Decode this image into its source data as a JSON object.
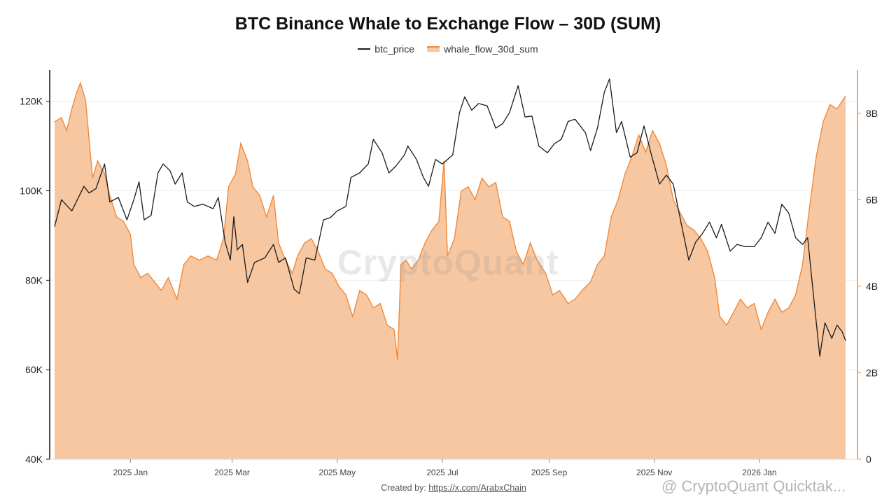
{
  "chart_data": {
    "type": "line",
    "title": "BTC Binance Whale to Exchange Flow – 30D (SUM)",
    "xlabel": "",
    "ylabel_left": "",
    "ylabel_right": "",
    "x_range": [
      "2024-11-18",
      "2026-02-20"
    ],
    "x_ticks": [
      {
        "date": "2025-01-01",
        "label": "2025 Jan"
      },
      {
        "date": "2025-03-01",
        "label": "2025 Mar"
      },
      {
        "date": "2025-05-01",
        "label": "2025 May"
      },
      {
        "date": "2025-07-01",
        "label": "2025 Jul"
      },
      {
        "date": "2025-09-01",
        "label": "2025 Sep"
      },
      {
        "date": "2025-11-01",
        "label": "2025 Nov"
      },
      {
        "date": "2026-01-01",
        "label": "2026 Jan"
      }
    ],
    "y_left": {
      "range": [
        40000,
        127000
      ],
      "ticks": [
        40000,
        60000,
        80000,
        100000,
        120000
      ],
      "tick_labels": [
        "40K",
        "60K",
        "80K",
        "100K",
        "120K"
      ]
    },
    "y_right": {
      "range": [
        0,
        9000000000
      ],
      "ticks": [
        0,
        2000000000,
        4000000000,
        6000000000,
        8000000000
      ],
      "tick_labels": [
        "0",
        "2B",
        "4B",
        "6B",
        "8B"
      ]
    },
    "grid": true,
    "legend_position": "top-center",
    "series": [
      {
        "name": "btc_price",
        "type": "line",
        "axis": "left",
        "color": "#1a1a1a",
        "points": [
          [
            "2024-11-18",
            92000
          ],
          [
            "2024-11-22",
            98000
          ],
          [
            "2024-11-28",
            95500
          ],
          [
            "2024-12-05",
            101000
          ],
          [
            "2024-12-08",
            99500
          ],
          [
            "2024-12-12",
            100500
          ],
          [
            "2024-12-17",
            106000
          ],
          [
            "2024-12-20",
            97500
          ],
          [
            "2024-12-25",
            98500
          ],
          [
            "2024-12-30",
            93500
          ],
          [
            "2025-01-03",
            98000
          ],
          [
            "2025-01-06",
            102000
          ],
          [
            "2025-01-09",
            93500
          ],
          [
            "2025-01-13",
            94500
          ],
          [
            "2025-01-17",
            104000
          ],
          [
            "2025-01-20",
            106000
          ],
          [
            "2025-01-24",
            104500
          ],
          [
            "2025-01-27",
            101500
          ],
          [
            "2025-01-31",
            104000
          ],
          [
            "2025-02-03",
            97500
          ],
          [
            "2025-02-07",
            96500
          ],
          [
            "2025-02-12",
            97000
          ],
          [
            "2025-02-18",
            96000
          ],
          [
            "2025-02-21",
            98500
          ],
          [
            "2025-02-25",
            88500
          ],
          [
            "2025-02-28",
            84500
          ],
          [
            "2025-03-02",
            94200
          ],
          [
            "2025-03-04",
            86800
          ],
          [
            "2025-03-07",
            88000
          ],
          [
            "2025-03-10",
            79500
          ],
          [
            "2025-03-14",
            84000
          ],
          [
            "2025-03-20",
            85000
          ],
          [
            "2025-03-25",
            88000
          ],
          [
            "2025-03-28",
            84000
          ],
          [
            "2025-04-01",
            85000
          ],
          [
            "2025-04-06",
            78000
          ],
          [
            "2025-04-09",
            77000
          ],
          [
            "2025-04-13",
            85000
          ],
          [
            "2025-04-18",
            84500
          ],
          [
            "2025-04-23",
            93500
          ],
          [
            "2025-04-27",
            94000
          ],
          [
            "2025-05-01",
            95500
          ],
          [
            "2025-05-06",
            96500
          ],
          [
            "2025-05-09",
            103000
          ],
          [
            "2025-05-14",
            104000
          ],
          [
            "2025-05-19",
            106000
          ],
          [
            "2025-05-22",
            111500
          ],
          [
            "2025-05-27",
            108500
          ],
          [
            "2025-05-31",
            104000
          ],
          [
            "2025-06-04",
            105500
          ],
          [
            "2025-06-09",
            108000
          ],
          [
            "2025-06-11",
            110000
          ],
          [
            "2025-06-16",
            107000
          ],
          [
            "2025-06-20",
            103000
          ],
          [
            "2025-06-23",
            101000
          ],
          [
            "2025-06-27",
            107000
          ],
          [
            "2025-07-01",
            106000
          ],
          [
            "2025-07-07",
            108000
          ],
          [
            "2025-07-11",
            117500
          ],
          [
            "2025-07-14",
            121000
          ],
          [
            "2025-07-18",
            118000
          ],
          [
            "2025-07-22",
            119500
          ],
          [
            "2025-07-27",
            119000
          ],
          [
            "2025-08-01",
            114000
          ],
          [
            "2025-08-05",
            115000
          ],
          [
            "2025-08-09",
            117500
          ],
          [
            "2025-08-14",
            123500
          ],
          [
            "2025-08-18",
            116500
          ],
          [
            "2025-08-22",
            116700
          ],
          [
            "2025-08-26",
            110000
          ],
          [
            "2025-08-31",
            108500
          ],
          [
            "2025-09-04",
            110500
          ],
          [
            "2025-09-08",
            111500
          ],
          [
            "2025-09-12",
            115500
          ],
          [
            "2025-09-16",
            116000
          ],
          [
            "2025-09-22",
            113000
          ],
          [
            "2025-09-25",
            109000
          ],
          [
            "2025-09-29",
            114000
          ],
          [
            "2025-10-03",
            122000
          ],
          [
            "2025-10-06",
            125000
          ],
          [
            "2025-10-10",
            113000
          ],
          [
            "2025-10-13",
            115500
          ],
          [
            "2025-10-18",
            107500
          ],
          [
            "2025-10-22",
            108500
          ],
          [
            "2025-10-26",
            114500
          ],
          [
            "2025-10-30",
            108500
          ],
          [
            "2025-11-04",
            101500
          ],
          [
            "2025-11-08",
            103500
          ],
          [
            "2025-11-12",
            101500
          ],
          [
            "2025-11-17",
            92000
          ],
          [
            "2025-11-21",
            84500
          ],
          [
            "2025-11-25",
            88500
          ],
          [
            "2025-11-29",
            90500
          ],
          [
            "2025-12-03",
            93000
          ],
          [
            "2025-12-07",
            89500
          ],
          [
            "2025-12-10",
            92500
          ],
          [
            "2025-12-15",
            86500
          ],
          [
            "2025-12-19",
            88000
          ],
          [
            "2025-12-24",
            87500
          ],
          [
            "2025-12-29",
            87500
          ],
          [
            "2026-01-02",
            89500
          ],
          [
            "2026-01-06",
            93000
          ],
          [
            "2026-01-10",
            90500
          ],
          [
            "2026-01-14",
            97000
          ],
          [
            "2026-01-18",
            95000
          ],
          [
            "2026-01-22",
            89500
          ],
          [
            "2026-01-26",
            88000
          ],
          [
            "2026-01-29",
            89500
          ],
          [
            "2026-02-01",
            78000
          ],
          [
            "2026-02-05",
            63000
          ],
          [
            "2026-02-08",
            70500
          ],
          [
            "2026-02-12",
            67000
          ],
          [
            "2026-02-15",
            70000
          ],
          [
            "2026-02-18",
            68500
          ],
          [
            "2026-02-20",
            66500
          ]
        ]
      },
      {
        "name": "whale_flow_30d_sum",
        "type": "area",
        "axis": "right",
        "color": "#ef8a3c",
        "fill": "#f6c7a1",
        "points": [
          [
            "2024-11-18",
            7800000000.0
          ],
          [
            "2024-11-22",
            7900000000.0
          ],
          [
            "2024-11-25",
            7600000000.0
          ],
          [
            "2024-11-28",
            8100000000.0
          ],
          [
            "2024-12-01",
            8500000000.0
          ],
          [
            "2024-12-03",
            8700000000.0
          ],
          [
            "2024-12-06",
            8300000000.0
          ],
          [
            "2024-12-10",
            6500000000.0
          ],
          [
            "2024-12-13",
            6900000000.0
          ],
          [
            "2024-12-17",
            6600000000.0
          ],
          [
            "2024-12-20",
            6100000000.0
          ],
          [
            "2024-12-24",
            5600000000.0
          ],
          [
            "2024-12-28",
            5500000000.0
          ],
          [
            "2025-01-01",
            5200000000.0
          ],
          [
            "2025-01-03",
            4500000000.0
          ],
          [
            "2025-01-07",
            4200000000.0
          ],
          [
            "2025-01-11",
            4300000000.0
          ],
          [
            "2025-01-15",
            4100000000.0
          ],
          [
            "2025-01-19",
            3900000000.0
          ],
          [
            "2025-01-23",
            4200000000.0
          ],
          [
            "2025-01-28",
            3700000000.0
          ],
          [
            "2025-02-01",
            4500000000.0
          ],
          [
            "2025-02-05",
            4700000000.0
          ],
          [
            "2025-02-10",
            4600000000.0
          ],
          [
            "2025-02-15",
            4700000000.0
          ],
          [
            "2025-02-20",
            4600000000.0
          ],
          [
            "2025-02-24",
            5100000000.0
          ],
          [
            "2025-02-27",
            6300000000.0
          ],
          [
            "2025-03-03",
            6600000000.0
          ],
          [
            "2025-03-06",
            7300000000.0
          ],
          [
            "2025-03-10",
            6900000000.0
          ],
          [
            "2025-03-13",
            6300000000.0
          ],
          [
            "2025-03-17",
            6100000000.0
          ],
          [
            "2025-03-21",
            5600000000.0
          ],
          [
            "2025-03-25",
            6100000000.0
          ],
          [
            "2025-03-28",
            5000000000.0
          ],
          [
            "2025-04-01",
            4600000000.0
          ],
          [
            "2025-04-05",
            4300000000.0
          ],
          [
            "2025-04-08",
            4700000000.0
          ],
          [
            "2025-04-12",
            5000000000.0
          ],
          [
            "2025-04-16",
            5100000000.0
          ],
          [
            "2025-04-20",
            4800000000.0
          ],
          [
            "2025-04-24",
            4400000000.0
          ],
          [
            "2025-04-28",
            4300000000.0
          ],
          [
            "2025-05-02",
            4000000000.0
          ],
          [
            "2025-05-06",
            3800000000.0
          ],
          [
            "2025-05-10",
            3300000000.0
          ],
          [
            "2025-05-14",
            3900000000.0
          ],
          [
            "2025-05-18",
            3800000000.0
          ],
          [
            "2025-05-22",
            3500000000.0
          ],
          [
            "2025-05-26",
            3600000000.0
          ],
          [
            "2025-05-30",
            3100000000.0
          ],
          [
            "2025-06-03",
            3000000000.0
          ],
          [
            "2025-06-05",
            2300000000.0
          ],
          [
            "2025-06-07",
            4500000000.0
          ],
          [
            "2025-06-10",
            4600000000.0
          ],
          [
            "2025-06-13",
            4400000000.0
          ],
          [
            "2025-06-17",
            4600000000.0
          ],
          [
            "2025-06-21",
            5000000000.0
          ],
          [
            "2025-06-25",
            5300000000.0
          ],
          [
            "2025-06-29",
            5500000000.0
          ],
          [
            "2025-07-02",
            6900000000.0
          ],
          [
            "2025-07-04",
            4700000000.0
          ],
          [
            "2025-07-08",
            5100000000.0
          ],
          [
            "2025-07-12",
            6200000000.0
          ],
          [
            "2025-07-16",
            6300000000.0
          ],
          [
            "2025-07-20",
            6000000000.0
          ],
          [
            "2025-07-24",
            6500000000.0
          ],
          [
            "2025-07-28",
            6300000000.0
          ],
          [
            "2025-08-01",
            6400000000.0
          ],
          [
            "2025-08-05",
            5600000000.0
          ],
          [
            "2025-08-09",
            5500000000.0
          ],
          [
            "2025-08-13",
            4800000000.0
          ],
          [
            "2025-08-17",
            4500000000.0
          ],
          [
            "2025-08-21",
            5000000000.0
          ],
          [
            "2025-08-25",
            4600000000.0
          ],
          [
            "2025-08-30",
            4300000000.0
          ],
          [
            "2025-09-03",
            3800000000.0
          ],
          [
            "2025-09-07",
            3900000000.0
          ],
          [
            "2025-09-12",
            3600000000.0
          ],
          [
            "2025-09-16",
            3700000000.0
          ],
          [
            "2025-09-20",
            3900000000.0
          ],
          [
            "2025-09-25",
            4100000000.0
          ],
          [
            "2025-09-29",
            4500000000.0
          ],
          [
            "2025-10-03",
            4700000000.0
          ],
          [
            "2025-10-07",
            5600000000.0
          ],
          [
            "2025-10-11",
            6000000000.0
          ],
          [
            "2025-10-15",
            6600000000.0
          ],
          [
            "2025-10-19",
            7000000000.0
          ],
          [
            "2025-10-23",
            7500000000.0
          ],
          [
            "2025-10-27",
            7100000000.0
          ],
          [
            "2025-10-31",
            7600000000.0
          ],
          [
            "2025-11-04",
            7300000000.0
          ],
          [
            "2025-11-08",
            6800000000.0
          ],
          [
            "2025-11-12",
            6000000000.0
          ],
          [
            "2025-11-16",
            5700000000.0
          ],
          [
            "2025-11-20",
            5400000000.0
          ],
          [
            "2025-11-24",
            5300000000.0
          ],
          [
            "2025-11-28",
            5100000000.0
          ],
          [
            "2025-12-02",
            4800000000.0
          ],
          [
            "2025-12-06",
            4200000000.0
          ],
          [
            "2025-12-09",
            3300000000.0
          ],
          [
            "2025-12-13",
            3100000000.0
          ],
          [
            "2025-12-17",
            3400000000.0
          ],
          [
            "2025-12-21",
            3700000000.0
          ],
          [
            "2025-12-25",
            3500000000.0
          ],
          [
            "2025-12-29",
            3600000000.0
          ],
          [
            "2026-01-02",
            3000000000.0
          ],
          [
            "2026-01-06",
            3400000000.0
          ],
          [
            "2026-01-10",
            3700000000.0
          ],
          [
            "2026-01-14",
            3400000000.0
          ],
          [
            "2026-01-18",
            3500000000.0
          ],
          [
            "2026-01-22",
            3800000000.0
          ],
          [
            "2026-01-26",
            4500000000.0
          ],
          [
            "2026-01-30",
            5800000000.0
          ],
          [
            "2026-02-03",
            7000000000.0
          ],
          [
            "2026-02-07",
            7800000000.0
          ],
          [
            "2026-02-11",
            8200000000.0
          ],
          [
            "2026-02-15",
            8100000000.0
          ],
          [
            "2026-02-20",
            8400000000.0
          ]
        ]
      }
    ]
  },
  "watermark": "CryptoQuant",
  "credit": {
    "prefix": "Created by: ",
    "link": "https://x.com/ArabxChain"
  },
  "brand_mark": "@ CryptoQuant Quicktak..."
}
